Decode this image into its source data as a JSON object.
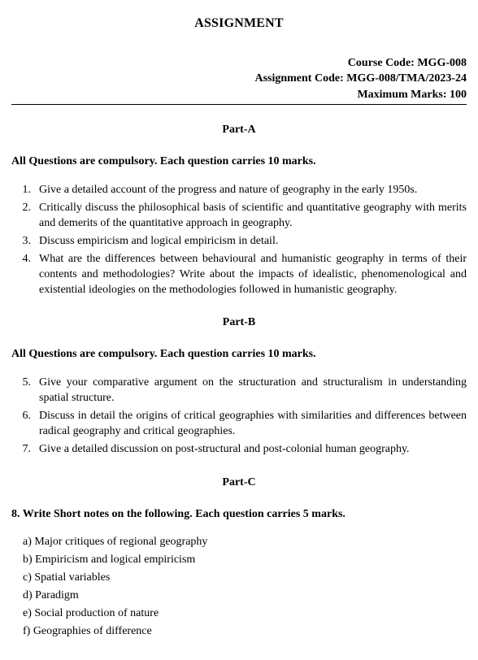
{
  "title": "ASSIGNMENT",
  "meta": {
    "course_code_label": "Course Code: MGG-008",
    "assignment_code_label": "Assignment Code: MGG-008/TMA/2023-24",
    "max_marks_label": "Maximum Marks: 100"
  },
  "partA": {
    "heading": "Part-A",
    "instruction": "All Questions are compulsory. Each question carries 10 marks.",
    "questions": [
      {
        "num": "1.",
        "text": "Give a detailed account of the progress and nature of geography in the early 1950s."
      },
      {
        "num": "2.",
        "text": "Critically discuss the philosophical basis of scientific and quantitative geography with merits and demerits of the quantitative approach in geography."
      },
      {
        "num": "3.",
        "text": "Discuss empiricism and logical empiricism in detail."
      },
      {
        "num": "4.",
        "text": "What are the differences between behavioural and humanistic geography in terms of their contents and methodologies? Write about the impacts of idealistic, phenomenological and existential ideologies on the methodologies followed in humanistic geography."
      }
    ]
  },
  "partB": {
    "heading": "Part-B",
    "instruction": "All Questions are compulsory. Each question carries 10 marks.",
    "questions": [
      {
        "num": "5.",
        "text": "Give your comparative argument on the structuration and structuralism in understanding spatial structure."
      },
      {
        "num": "6.",
        "text": "Discuss in detail the origins of critical geographies with similarities and differences between radical geography and critical geographies."
      },
      {
        "num": "7.",
        "text": "Give a detailed discussion on post-structural and post-colonial human geography."
      }
    ]
  },
  "partC": {
    "heading": "Part-C",
    "short_question": "8. Write Short notes on the following. Each question carries 5 marks.",
    "items": [
      "a) Major critiques of regional geography",
      "b) Empiricism and logical empiricism",
      "c) Spatial variables",
      "d) Paradigm",
      "e) Social production of nature",
      "f) Geographies of difference"
    ]
  }
}
